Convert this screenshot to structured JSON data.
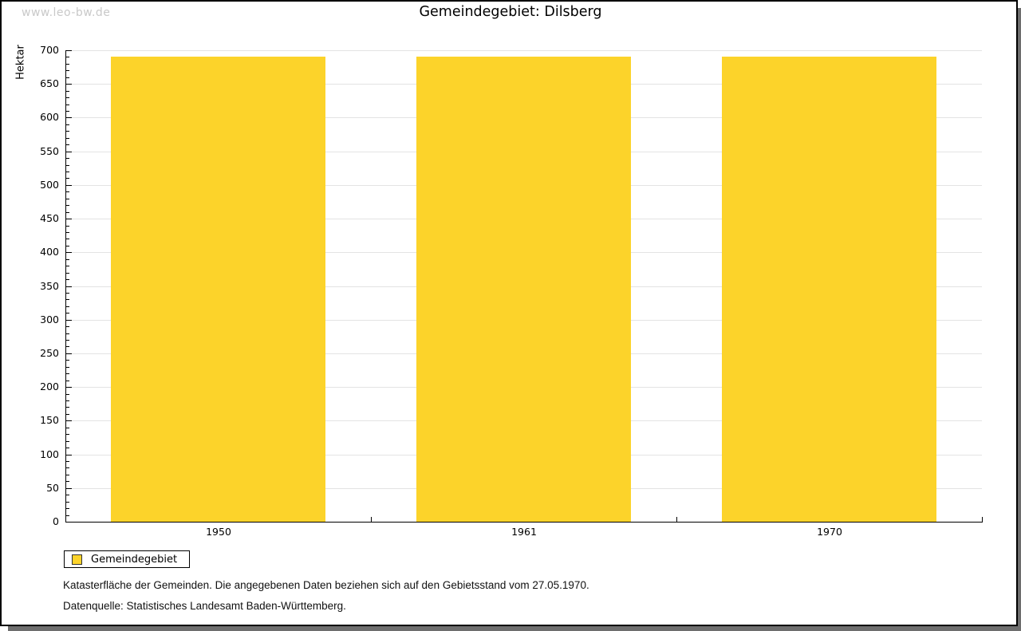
{
  "watermark": "www.leo-bw.de",
  "title": "Gemeindegebiet: Dilsberg",
  "chart_data": {
    "type": "bar",
    "title": "Gemeindegebiet: Dilsberg",
    "categories": [
      "1950",
      "1961",
      "1970"
    ],
    "series": [
      {
        "name": "Gemeindegebiet",
        "values": [
          690,
          690,
          690
        ]
      }
    ],
    "xlabel": "",
    "ylabel": "Hektar",
    "ylim": [
      0,
      700
    ],
    "ytick_major_step": 50,
    "ytick_minor_step": 10,
    "grid": true,
    "legend_position": "bottom-left",
    "bar_color": "#FCD32A"
  },
  "legend": {
    "label": "Gemeindegebiet"
  },
  "footnotes": [
    "Katasterfläche der Gemeinden. Die angegebenen Daten beziehen sich auf den Gebietsstand vom 27.05.1970.",
    "Datenquelle: Statistisches Landesamt Baden-Württemberg."
  ],
  "colors": {
    "bar_fill": "#FCD32A",
    "grid_line": "#e3e3e3",
    "axis": "#000000",
    "watermark_text": "#c9c9c9",
    "shadow": "#6e6e6e",
    "background": "#ffffff"
  }
}
